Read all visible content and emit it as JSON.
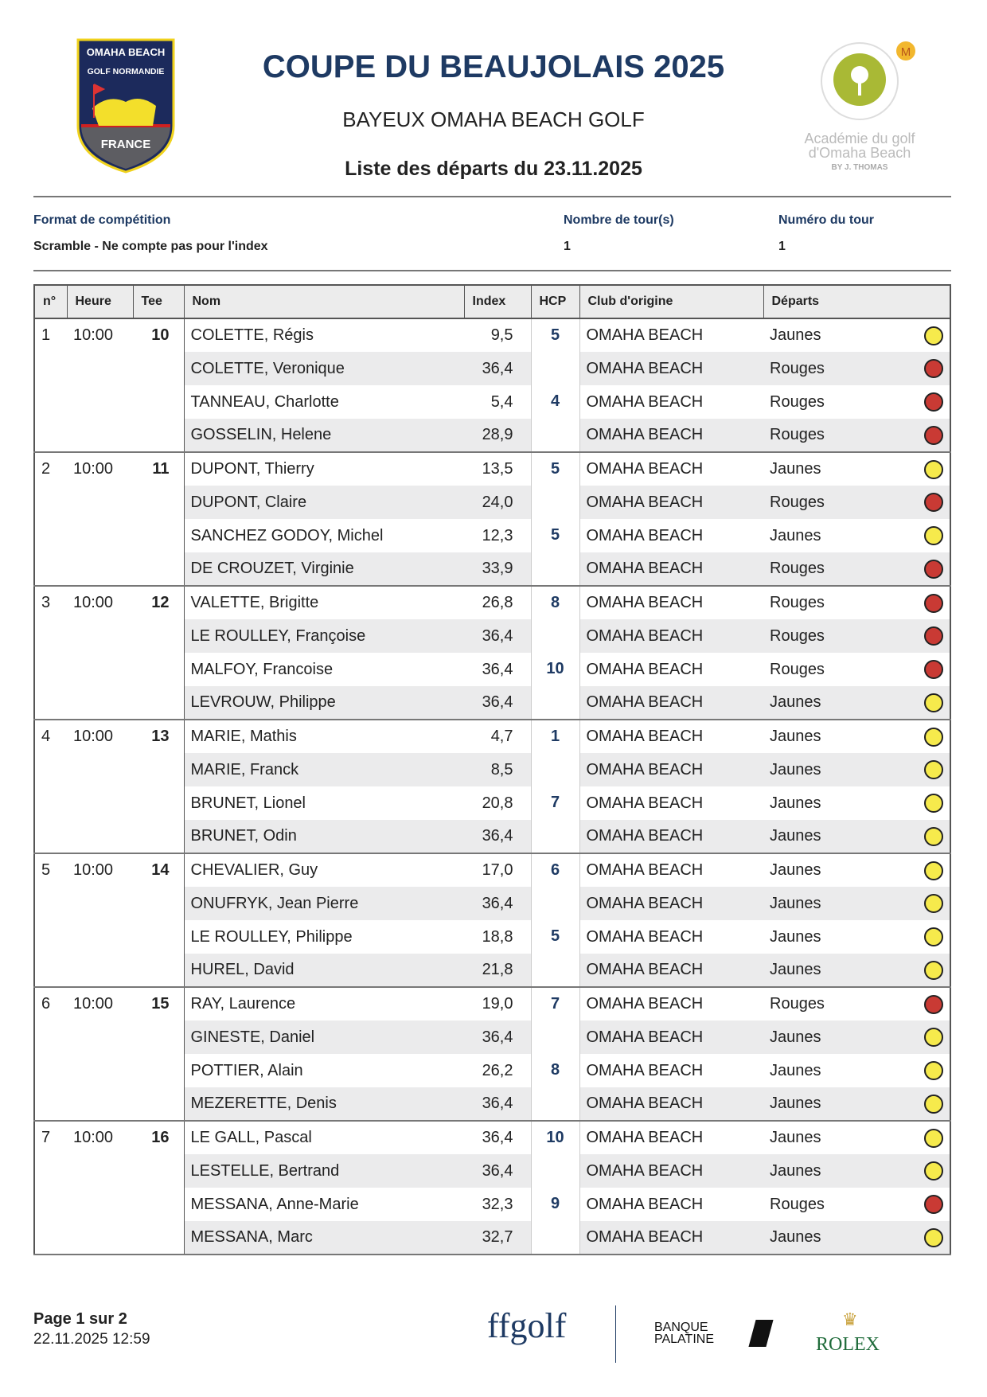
{
  "header": {
    "title": "COUPE DU BEAUJOLAIS 2025",
    "subtitle": "BAYEUX OMAHA BEACH GOLF",
    "list_title": "Liste des départs du 23.11.2025",
    "left_logo": {
      "line1": "OMAHA BEACH",
      "line2": "GOLF NORMANDIE",
      "line3": "FRANCE"
    },
    "right_logo": {
      "line1": "Académie du golf",
      "line2": "d'Omaha Beach",
      "line3": "BY J. THOMAS"
    }
  },
  "info": {
    "format_label": "Format de compétition",
    "format_value": "Scramble - Ne compte pas pour l'index",
    "rounds_label": "Nombre de tour(s)",
    "rounds_value": "1",
    "round_no_label": "Numéro du tour",
    "round_no_value": "1"
  },
  "table": {
    "columns": [
      "n°",
      "Heure",
      "Tee",
      "Nom",
      "Index",
      "HCP",
      "Club d'origine",
      "Départs"
    ],
    "colors": {
      "Jaunes": "#f6ea4c",
      "Rouges": "#c93a34"
    },
    "groups": [
      {
        "n": "1",
        "time": "10:00",
        "tee": "10",
        "hcp": [
          "5",
          "4"
        ],
        "players": [
          {
            "name": "COLETTE, Régis",
            "index": "9,5",
            "club": "OMAHA BEACH",
            "dep": "Jaunes"
          },
          {
            "name": "COLETTE, Veronique",
            "index": "36,4",
            "club": "OMAHA BEACH",
            "dep": "Rouges"
          },
          {
            "name": "TANNEAU, Charlotte",
            "index": "5,4",
            "club": "OMAHA BEACH",
            "dep": "Rouges"
          },
          {
            "name": "GOSSELIN, Helene",
            "index": "28,9",
            "club": "OMAHA BEACH",
            "dep": "Rouges"
          }
        ]
      },
      {
        "n": "2",
        "time": "10:00",
        "tee": "11",
        "hcp": [
          "5",
          "5"
        ],
        "players": [
          {
            "name": "DUPONT, Thierry",
            "index": "13,5",
            "club": "OMAHA BEACH",
            "dep": "Jaunes"
          },
          {
            "name": "DUPONT, Claire",
            "index": "24,0",
            "club": "OMAHA BEACH",
            "dep": "Rouges"
          },
          {
            "name": "SANCHEZ GODOY, Michel",
            "index": "12,3",
            "club": "OMAHA BEACH",
            "dep": "Jaunes"
          },
          {
            "name": "DE CROUZET, Virginie",
            "index": "33,9",
            "club": "OMAHA BEACH",
            "dep": "Rouges"
          }
        ]
      },
      {
        "n": "3",
        "time": "10:00",
        "tee": "12",
        "hcp": [
          "8",
          "10"
        ],
        "players": [
          {
            "name": "VALETTE, Brigitte",
            "index": "26,8",
            "club": "OMAHA BEACH",
            "dep": "Rouges"
          },
          {
            "name": "LE ROULLEY, Françoise",
            "index": "36,4",
            "club": "OMAHA BEACH",
            "dep": "Rouges"
          },
          {
            "name": "MALFOY, Francoise",
            "index": "36,4",
            "club": "OMAHA BEACH",
            "dep": "Rouges"
          },
          {
            "name": "LEVROUW, Philippe",
            "index": "36,4",
            "club": "OMAHA BEACH",
            "dep": "Jaunes"
          }
        ]
      },
      {
        "n": "4",
        "time": "10:00",
        "tee": "13",
        "hcp": [
          "1",
          "7"
        ],
        "players": [
          {
            "name": "MARIE, Mathis",
            "index": "4,7",
            "club": "OMAHA BEACH",
            "dep": "Jaunes"
          },
          {
            "name": "MARIE, Franck",
            "index": "8,5",
            "club": "OMAHA BEACH",
            "dep": "Jaunes"
          },
          {
            "name": "BRUNET, Lionel",
            "index": "20,8",
            "club": "OMAHA BEACH",
            "dep": "Jaunes"
          },
          {
            "name": "BRUNET, Odin",
            "index": "36,4",
            "club": "OMAHA BEACH",
            "dep": "Jaunes"
          }
        ]
      },
      {
        "n": "5",
        "time": "10:00",
        "tee": "14",
        "hcp": [
          "6",
          "5"
        ],
        "players": [
          {
            "name": "CHEVALIER, Guy",
            "index": "17,0",
            "club": "OMAHA BEACH",
            "dep": "Jaunes"
          },
          {
            "name": "ONUFRYK, Jean Pierre",
            "index": "36,4",
            "club": "OMAHA BEACH",
            "dep": "Jaunes"
          },
          {
            "name": "LE ROULLEY, Philippe",
            "index": "18,8",
            "club": "OMAHA BEACH",
            "dep": "Jaunes"
          },
          {
            "name": "HUREL, David",
            "index": "21,8",
            "club": "OMAHA BEACH",
            "dep": "Jaunes"
          }
        ]
      },
      {
        "n": "6",
        "time": "10:00",
        "tee": "15",
        "hcp": [
          "7",
          "8"
        ],
        "players": [
          {
            "name": "RAY, Laurence",
            "index": "19,0",
            "club": "OMAHA BEACH",
            "dep": "Rouges"
          },
          {
            "name": "GINESTE, Daniel",
            "index": "36,4",
            "club": "OMAHA BEACH",
            "dep": "Jaunes"
          },
          {
            "name": "POTTIER, Alain",
            "index": "26,2",
            "club": "OMAHA BEACH",
            "dep": "Jaunes"
          },
          {
            "name": "MEZERETTE, Denis",
            "index": "36,4",
            "club": "OMAHA BEACH",
            "dep": "Jaunes"
          }
        ]
      },
      {
        "n": "7",
        "time": "10:00",
        "tee": "16",
        "hcp": [
          "10",
          "9"
        ],
        "players": [
          {
            "name": "LE GALL, Pascal",
            "index": "36,4",
            "club": "OMAHA BEACH",
            "dep": "Jaunes"
          },
          {
            "name": "LESTELLE, Bertrand",
            "index": "36,4",
            "club": "OMAHA BEACH",
            "dep": "Jaunes"
          },
          {
            "name": "MESSANA, Anne-Marie",
            "index": "32,3",
            "club": "OMAHA BEACH",
            "dep": "Rouges"
          },
          {
            "name": "MESSANA, Marc",
            "index": "32,7",
            "club": "OMAHA BEACH",
            "dep": "Jaunes"
          }
        ]
      }
    ]
  },
  "footer": {
    "page": "Page 1 sur 2",
    "date": "22.11.2025 12:59",
    "sponsors": [
      "ffgolf",
      "BANQUE PALATINE",
      "ROLEX"
    ]
  }
}
